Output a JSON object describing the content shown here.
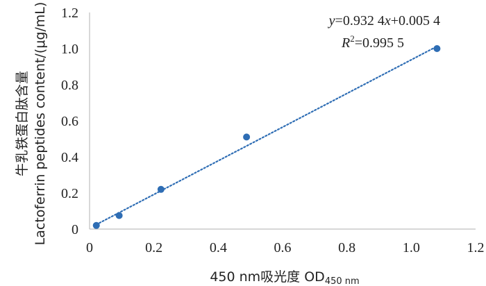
{
  "chart_data": {
    "type": "scatter",
    "points": [
      {
        "x": 0.021,
        "y": 0.02
      },
      {
        "x": 0.092,
        "y": 0.075
      },
      {
        "x": 0.222,
        "y": 0.22
      },
      {
        "x": 0.488,
        "y": 0.51
      },
      {
        "x": 1.08,
        "y": 1.0
      }
    ],
    "trendline": {
      "type": "linear",
      "slope": 0.9324,
      "intercept": 0.0054,
      "style": "dotted",
      "x_range": [
        0.021,
        1.08
      ]
    },
    "xlim": [
      0,
      1.2
    ],
    "ylim": [
      0,
      1.2
    ],
    "xticks": [
      "0",
      "0.2",
      "0.4",
      "0.6",
      "0.8",
      "1.0",
      "1.2"
    ],
    "yticks": [
      "0",
      "0.2",
      "0.4",
      "0.6",
      "0.8",
      "1.0",
      "1.2"
    ],
    "xlabel": "450 nm吸光度  OD",
    "xlabel_sub": "450 nm",
    "ylabel_cn": "牛乳铁蛋白肽含量",
    "ylabel_en": "Lactoferrin peptides content/(μg/mL)",
    "equation": {
      "y_var": "y",
      "rhs_1": "=0.932 4",
      "x_var": "x",
      "rhs_2": "+0.005 4",
      "r_var": "R",
      "r_sup": "2",
      "r_val": "=0.995 5"
    },
    "grid": false,
    "legend": "none",
    "colors": {
      "point": "#2e6db4",
      "trendline": "#2e6db4",
      "axis": "#bfbfbf",
      "text": "#222222"
    }
  }
}
